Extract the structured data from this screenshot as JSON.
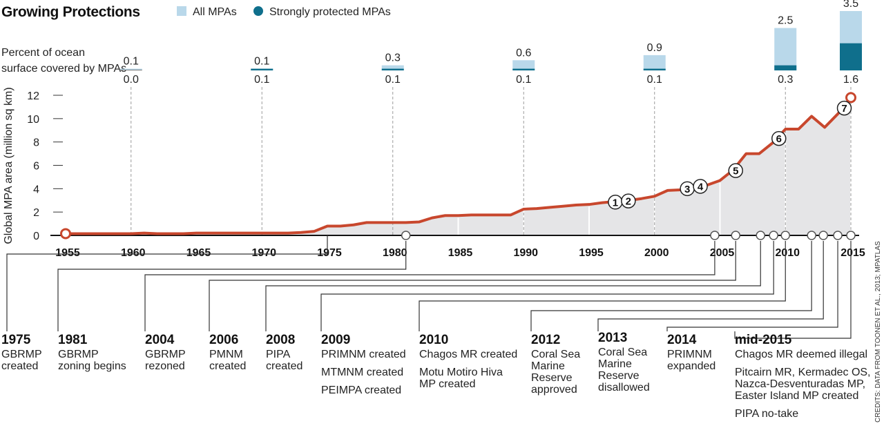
{
  "title": "Growing Protections",
  "legend": [
    {
      "label": "All MPAs",
      "color": "#b9d8ea"
    },
    {
      "label": "Strongly protected MPAs",
      "color": "#0f6f8c"
    }
  ],
  "bar_caption": [
    "Percent of ocean",
    "surface covered by MPAs"
  ],
  "credit": "CREDITS: DATA FROM TOONEN ET AL., 2013; MPATLAS",
  "chart_data": [
    {
      "type": "area",
      "ylabel": "Global MPA area (million sq km)",
      "xlim": [
        1955,
        2015.5
      ],
      "ylim": [
        0,
        12
      ],
      "yticks": [
        0,
        2,
        4,
        6,
        8,
        10,
        12
      ],
      "xticks": [
        1955,
        1960,
        1965,
        1970,
        1975,
        1980,
        1985,
        1990,
        1995,
        2000,
        2005,
        2010,
        2015
      ],
      "line_color": "#c8472d",
      "fill_color": "#e5e5e7",
      "x": [
        1955,
        1956,
        1957,
        1958,
        1959,
        1960,
        1961,
        1962,
        1963,
        1964,
        1965,
        1966,
        1967,
        1968,
        1969,
        1970,
        1971,
        1972,
        1973,
        1974,
        1975,
        1976,
        1977,
        1978,
        1979,
        1980,
        1981,
        1982,
        1983,
        1984,
        1985,
        1986,
        1987,
        1988,
        1989,
        1990,
        1991,
        1992,
        1993,
        1994,
        1995,
        1996,
        1997,
        1998,
        1999,
        2000,
        2001,
        2002,
        2003,
        2004,
        2005,
        2006,
        2007,
        2008,
        2009,
        2010,
        2011,
        2012,
        2013,
        2014,
        2015
      ],
      "y": [
        0.15,
        0.15,
        0.15,
        0.15,
        0.15,
        0.15,
        0.2,
        0.15,
        0.15,
        0.15,
        0.2,
        0.2,
        0.2,
        0.2,
        0.2,
        0.2,
        0.2,
        0.2,
        0.25,
        0.35,
        0.8,
        0.8,
        0.9,
        1.1,
        1.1,
        1.1,
        1.1,
        1.15,
        1.5,
        1.7,
        1.7,
        1.75,
        1.75,
        1.75,
        1.75,
        2.25,
        2.3,
        2.4,
        2.5,
        2.6,
        2.65,
        2.8,
        2.9,
        3.0,
        3.15,
        3.35,
        3.85,
        3.9,
        4.0,
        4.3,
        4.7,
        5.6,
        7.0,
        7.0,
        7.9,
        9.1,
        9.1,
        10.2,
        9.25,
        10.4,
        11.8
      ],
      "markers": [
        {
          "label": "1",
          "x": 1997,
          "y": 2.85
        },
        {
          "label": "2",
          "x": 1998,
          "y": 2.95
        },
        {
          "label": "3",
          "x": 2002.5,
          "y": 4.0
        },
        {
          "label": "4",
          "x": 2003.5,
          "y": 4.2
        },
        {
          "label": "5",
          "x": 2006.2,
          "y": 5.55
        },
        {
          "label": "6",
          "x": 2009.5,
          "y": 8.3
        },
        {
          "label": "7",
          "x": 2014.5,
          "y": 10.9
        }
      ]
    },
    {
      "type": "bar",
      "categories": [
        "1960",
        "1970",
        "1980",
        "1990",
        "2000",
        "2010",
        "2015"
      ],
      "series": [
        {
          "name": "All MPAs",
          "values": [
            0.1,
            0.1,
            0.3,
            0.6,
            0.9,
            2.5,
            3.5
          ]
        },
        {
          "name": "Strongly protected MPAs",
          "values": [
            0.0,
            0.1,
            0.1,
            0.1,
            0.1,
            0.3,
            1.6
          ]
        }
      ],
      "top_labels": [
        "0.1",
        "0.1",
        "0.3",
        "0.6",
        "0.9",
        "2.5",
        "3.5"
      ],
      "bottom_labels": [
        "0.0",
        "0.1",
        "0.1",
        "0.1",
        "0.1",
        "0.3",
        "1.6"
      ],
      "ylim": [
        0,
        3.5
      ]
    }
  ],
  "timeline": [
    {
      "year": "1975",
      "x": 1975,
      "lines": [
        "GBRMP",
        "created"
      ]
    },
    {
      "year": "1981",
      "x": 1981,
      "lines": [
        "GBRMP",
        "zoning begins"
      ]
    },
    {
      "year": "2004",
      "x": 2004.6,
      "lines": [
        "GBRMP",
        "rezoned"
      ]
    },
    {
      "year": "2006",
      "x": 2006.2,
      "lines": [
        "PMNM",
        "created"
      ]
    },
    {
      "year": "2008",
      "x": 2008.1,
      "lines": [
        "PIPA",
        "created"
      ]
    },
    {
      "year": "2009",
      "x": 2009.1,
      "lines": [
        "PRIMNM created",
        "MTMNM created",
        "PEIMPA created"
      ]
    },
    {
      "year": "2010",
      "x": 2010,
      "lines": [
        "Chagos MR created",
        "Motu Motiro Hiva",
        "MP created"
      ]
    },
    {
      "year": "2012",
      "x": 2012.0,
      "lines": [
        "Coral Sea",
        "Marine",
        "Reserve",
        "approved"
      ]
    },
    {
      "year": "2013",
      "x": 2012.9,
      "lines": [
        "Coral Sea",
        "Marine",
        "Reserve",
        "disallowed"
      ]
    },
    {
      "year": "2014",
      "x": 2014.0,
      "lines": [
        "PRIMNM",
        "expanded"
      ]
    },
    {
      "year": "mid-2015",
      "x": 2015.0,
      "lines": [
        "Chagos MR deemed illegal",
        "Pitcairn MR, Kermadec OS,",
        "Nazca-Desventuradas MP,",
        "Easter Island MP created",
        "PIPA no-take"
      ]
    }
  ]
}
